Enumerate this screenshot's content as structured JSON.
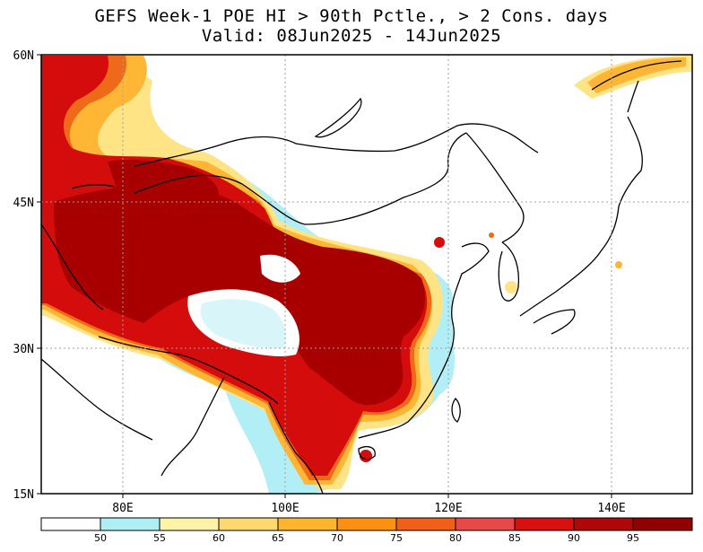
{
  "title_line1": "GEFS Week-1 POE HI > 90th Pctle., > 2 Cons. days",
  "title_line2": "Valid: 08Jun2025 - 14Jun2025",
  "axes": {
    "lat_labels": [
      "60N",
      "45N",
      "30N",
      "15N"
    ],
    "lon_labels": [
      "80E",
      "100E",
      "120E",
      "140E"
    ]
  },
  "colorbar": {
    "labels": [
      "50",
      "55",
      "60",
      "65",
      "70",
      "75",
      "80",
      "85",
      "90",
      "95"
    ],
    "colors": [
      "#ffffff",
      "#aeeef5",
      "#fff3a8",
      "#ffd870",
      "#ffb62e",
      "#ff9010",
      "#f06018",
      "#e84848",
      "#d81010",
      "#b00808",
      "#900000"
    ]
  },
  "colors": {
    "very_high": "#a80000",
    "high": "#d40c0c",
    "mid": "#ee6a18",
    "low": "#ffb634",
    "lowest": "#ffe486",
    "fringe": "#b2eef6",
    "coast": "#000000",
    "grid": "#a0a0a0"
  }
}
